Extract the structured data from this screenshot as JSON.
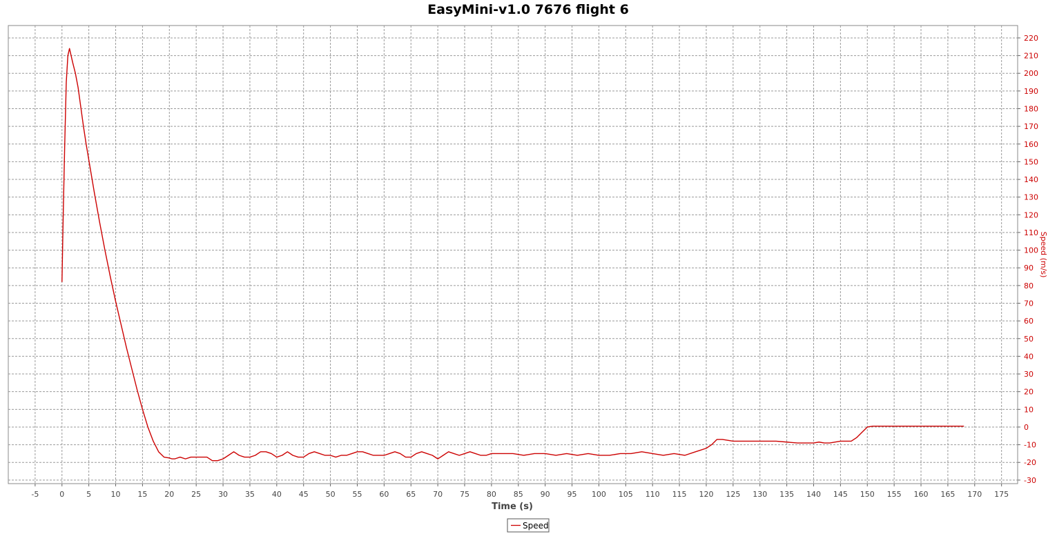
{
  "chart_data": {
    "type": "line",
    "title": "EasyMini-v1.0 7676 flight 6",
    "xlabel": "Time (s)",
    "ylabel": "Speed (m/s)",
    "xlim": [
      -10,
      178
    ],
    "ylim": [
      -32,
      227
    ],
    "x_ticks": [
      -5,
      0,
      5,
      10,
      15,
      20,
      25,
      30,
      35,
      40,
      45,
      50,
      55,
      60,
      65,
      70,
      75,
      80,
      85,
      90,
      95,
      100,
      105,
      110,
      115,
      120,
      125,
      130,
      135,
      140,
      145,
      150,
      155,
      160,
      165,
      170,
      175
    ],
    "y_ticks": [
      -30,
      -20,
      -10,
      0,
      10,
      20,
      30,
      40,
      50,
      60,
      70,
      80,
      90,
      100,
      110,
      120,
      130,
      140,
      150,
      160,
      170,
      180,
      190,
      200,
      210,
      220
    ],
    "grid": true,
    "y_axis_side": "right",
    "legend_position": "bottom-center",
    "colors": {
      "series": "#cc0000",
      "tick_y": "#cc0000",
      "tick_x": "#444444",
      "grid": "#999999"
    },
    "series": [
      {
        "name": "Speed",
        "x": [
          0,
          0.2,
          0.5,
          0.8,
          1.1,
          1.4,
          1.7,
          2,
          2.5,
          3,
          3.5,
          4,
          4.5,
          5,
          6,
          7,
          8,
          9,
          10,
          11,
          12,
          13,
          14,
          15,
          16,
          17,
          18,
          19,
          20,
          20.5,
          21,
          22,
          23,
          24,
          25,
          26,
          27,
          28,
          29,
          30,
          31,
          32,
          33,
          34,
          35,
          36,
          37,
          38,
          39,
          40,
          41,
          42,
          43,
          44,
          45,
          46,
          47,
          48,
          49,
          50,
          51,
          52,
          53,
          54,
          55,
          56,
          57,
          58,
          59,
          60,
          61,
          62,
          63,
          64,
          65,
          66,
          67,
          68,
          69,
          70,
          71,
          72,
          73,
          74,
          75,
          76,
          77,
          78,
          79,
          80,
          82,
          84,
          86,
          88,
          90,
          92,
          94,
          96,
          98,
          100,
          102,
          104,
          106,
          108,
          110,
          112,
          114,
          116,
          118,
          119,
          120,
          121,
          122,
          123,
          125,
          127,
          129,
          131,
          133,
          135,
          137,
          139,
          140,
          141,
          142,
          143,
          145,
          147,
          148,
          149,
          150,
          151,
          155,
          160,
          165,
          168
        ],
        "y": [
          82,
          115,
          158,
          195,
          210,
          214,
          210,
          206,
          200,
          192,
          181,
          170,
          160,
          151,
          133,
          116,
          100,
          85,
          71,
          58,
          45,
          33,
          21,
          10,
          0,
          -8,
          -14,
          -17,
          -17.5,
          -18,
          -18,
          -17,
          -18,
          -17,
          -17,
          -17,
          -17,
          -19,
          -19,
          -18,
          -16,
          -14,
          -16,
          -17,
          -17,
          -16,
          -14,
          -14,
          -15,
          -17,
          -16,
          -14,
          -16,
          -17,
          -17,
          -15,
          -14,
          -15,
          -16,
          -16,
          -17,
          -16,
          -16,
          -15,
          -14,
          -14,
          -15,
          -16,
          -16,
          -16,
          -15,
          -14,
          -15,
          -17,
          -17,
          -15,
          -14,
          -15,
          -16,
          -18,
          -16,
          -14,
          -15,
          -16,
          -15,
          -14,
          -15,
          -16,
          -16,
          -15,
          -15,
          -15,
          -16,
          -15,
          -15,
          -16,
          -15,
          -16,
          -15,
          -16,
          -16,
          -15,
          -15,
          -14,
          -15,
          -16,
          -15,
          -16,
          -14,
          -13,
          -12,
          -10,
          -7,
          -7,
          -8,
          -8,
          -8,
          -8,
          -8,
          -8.5,
          -9,
          -9,
          -9,
          -8.5,
          -9,
          -9,
          -8,
          -8,
          -6,
          -3,
          0,
          0.5,
          0.5,
          0.5,
          0.5,
          0.5
        ]
      }
    ]
  }
}
